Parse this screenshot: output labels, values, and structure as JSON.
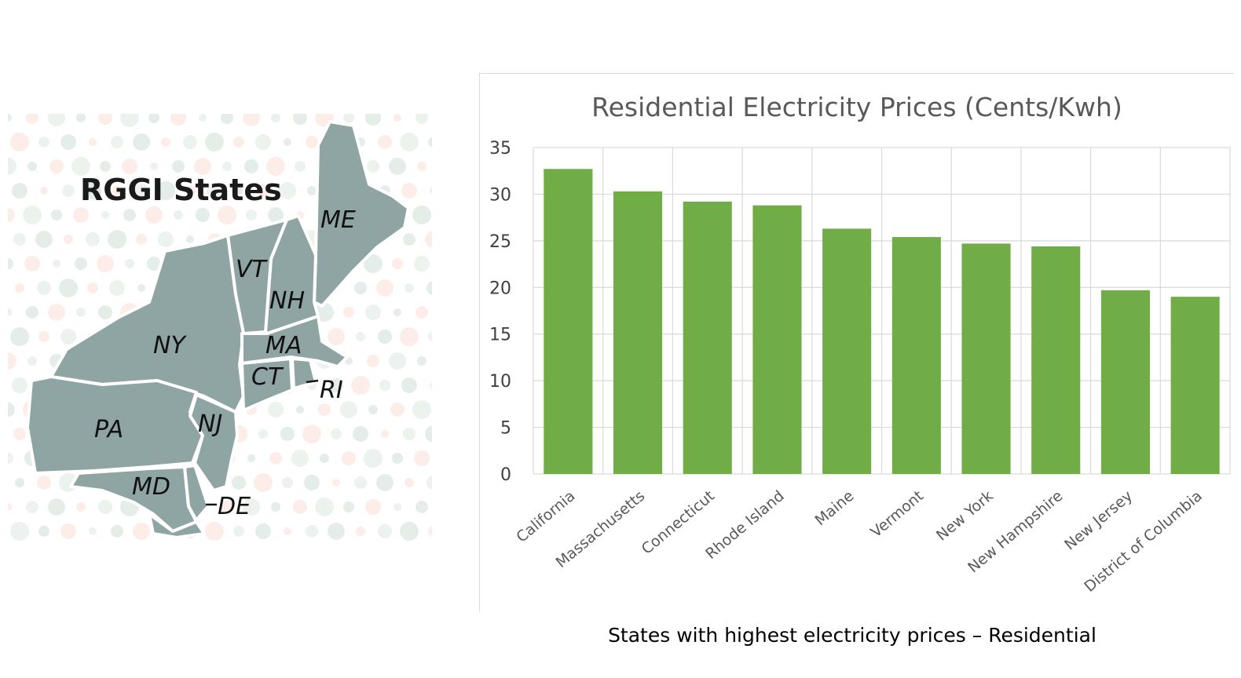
{
  "map": {
    "title": "RGGI States",
    "state_labels": {
      "ME": "ME",
      "VT": "VT",
      "NH": "NH",
      "NY": "NY",
      "MA": "MA",
      "CT": "CT",
      "RI": "RI",
      "PA": "PA",
      "NJ": "NJ",
      "MD": "MD",
      "DE": "DE"
    },
    "state_color": "#8fa5a3"
  },
  "chart_data": {
    "type": "bar",
    "title": "Residential Electricity Prices (Cents/Kwh)",
    "categories": [
      "California",
      "Massachusetts",
      "Connecticut",
      "Rhode Island",
      "Maine",
      "Vermont",
      "New York",
      "New Hampshire",
      "New Jersey",
      "District of Columbia"
    ],
    "values": [
      32.7,
      30.3,
      29.2,
      28.8,
      26.3,
      25.4,
      24.7,
      24.4,
      19.7,
      19.0
    ],
    "xlabel": "",
    "ylabel": "",
    "ylim": [
      0,
      35
    ],
    "yticks": [
      0,
      5,
      10,
      15,
      20,
      25,
      30,
      35
    ],
    "grid": true,
    "legend": "none",
    "bar_color": "#70ad47"
  },
  "caption": "States with highest electricity prices – Residential"
}
